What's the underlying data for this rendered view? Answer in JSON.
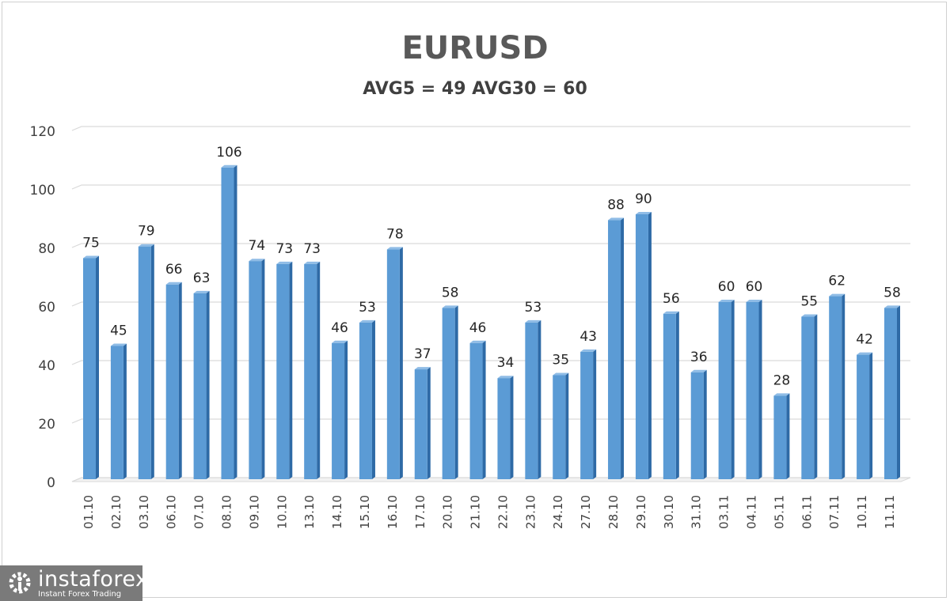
{
  "chart_data": {
    "type": "bar",
    "title": "EURUSD",
    "subtitle": "AVG5 = 49 AVG30 = 60",
    "xlabel": "",
    "ylabel": "",
    "ylim": [
      0,
      120
    ],
    "yticks": [
      0,
      20,
      40,
      60,
      80,
      100,
      120
    ],
    "grid": true,
    "legend": "none",
    "categories": [
      "01.10",
      "02.10",
      "03.10",
      "06.10",
      "07.10",
      "08.10",
      "09.10",
      "10.10",
      "13.10",
      "14.10",
      "15.10",
      "16.10",
      "17.10",
      "20.10",
      "21.10",
      "22.10",
      "23.10",
      "24.10",
      "27.10",
      "28.10",
      "29.10",
      "30.10",
      "31.10",
      "03.11",
      "04.11",
      "05.11",
      "06.11",
      "07.11",
      "10.11",
      "11.11"
    ],
    "values": [
      75,
      45,
      79,
      66,
      63,
      106,
      74,
      73,
      73,
      46,
      53,
      78,
      37,
      58,
      46,
      34,
      53,
      35,
      43,
      88,
      90,
      56,
      36,
      60,
      60,
      28,
      55,
      62,
      42,
      58
    ],
    "bar_color": "#5b9bd5"
  },
  "logo": {
    "brand": "instaforex",
    "tagline": "Instant Forex Trading"
  }
}
